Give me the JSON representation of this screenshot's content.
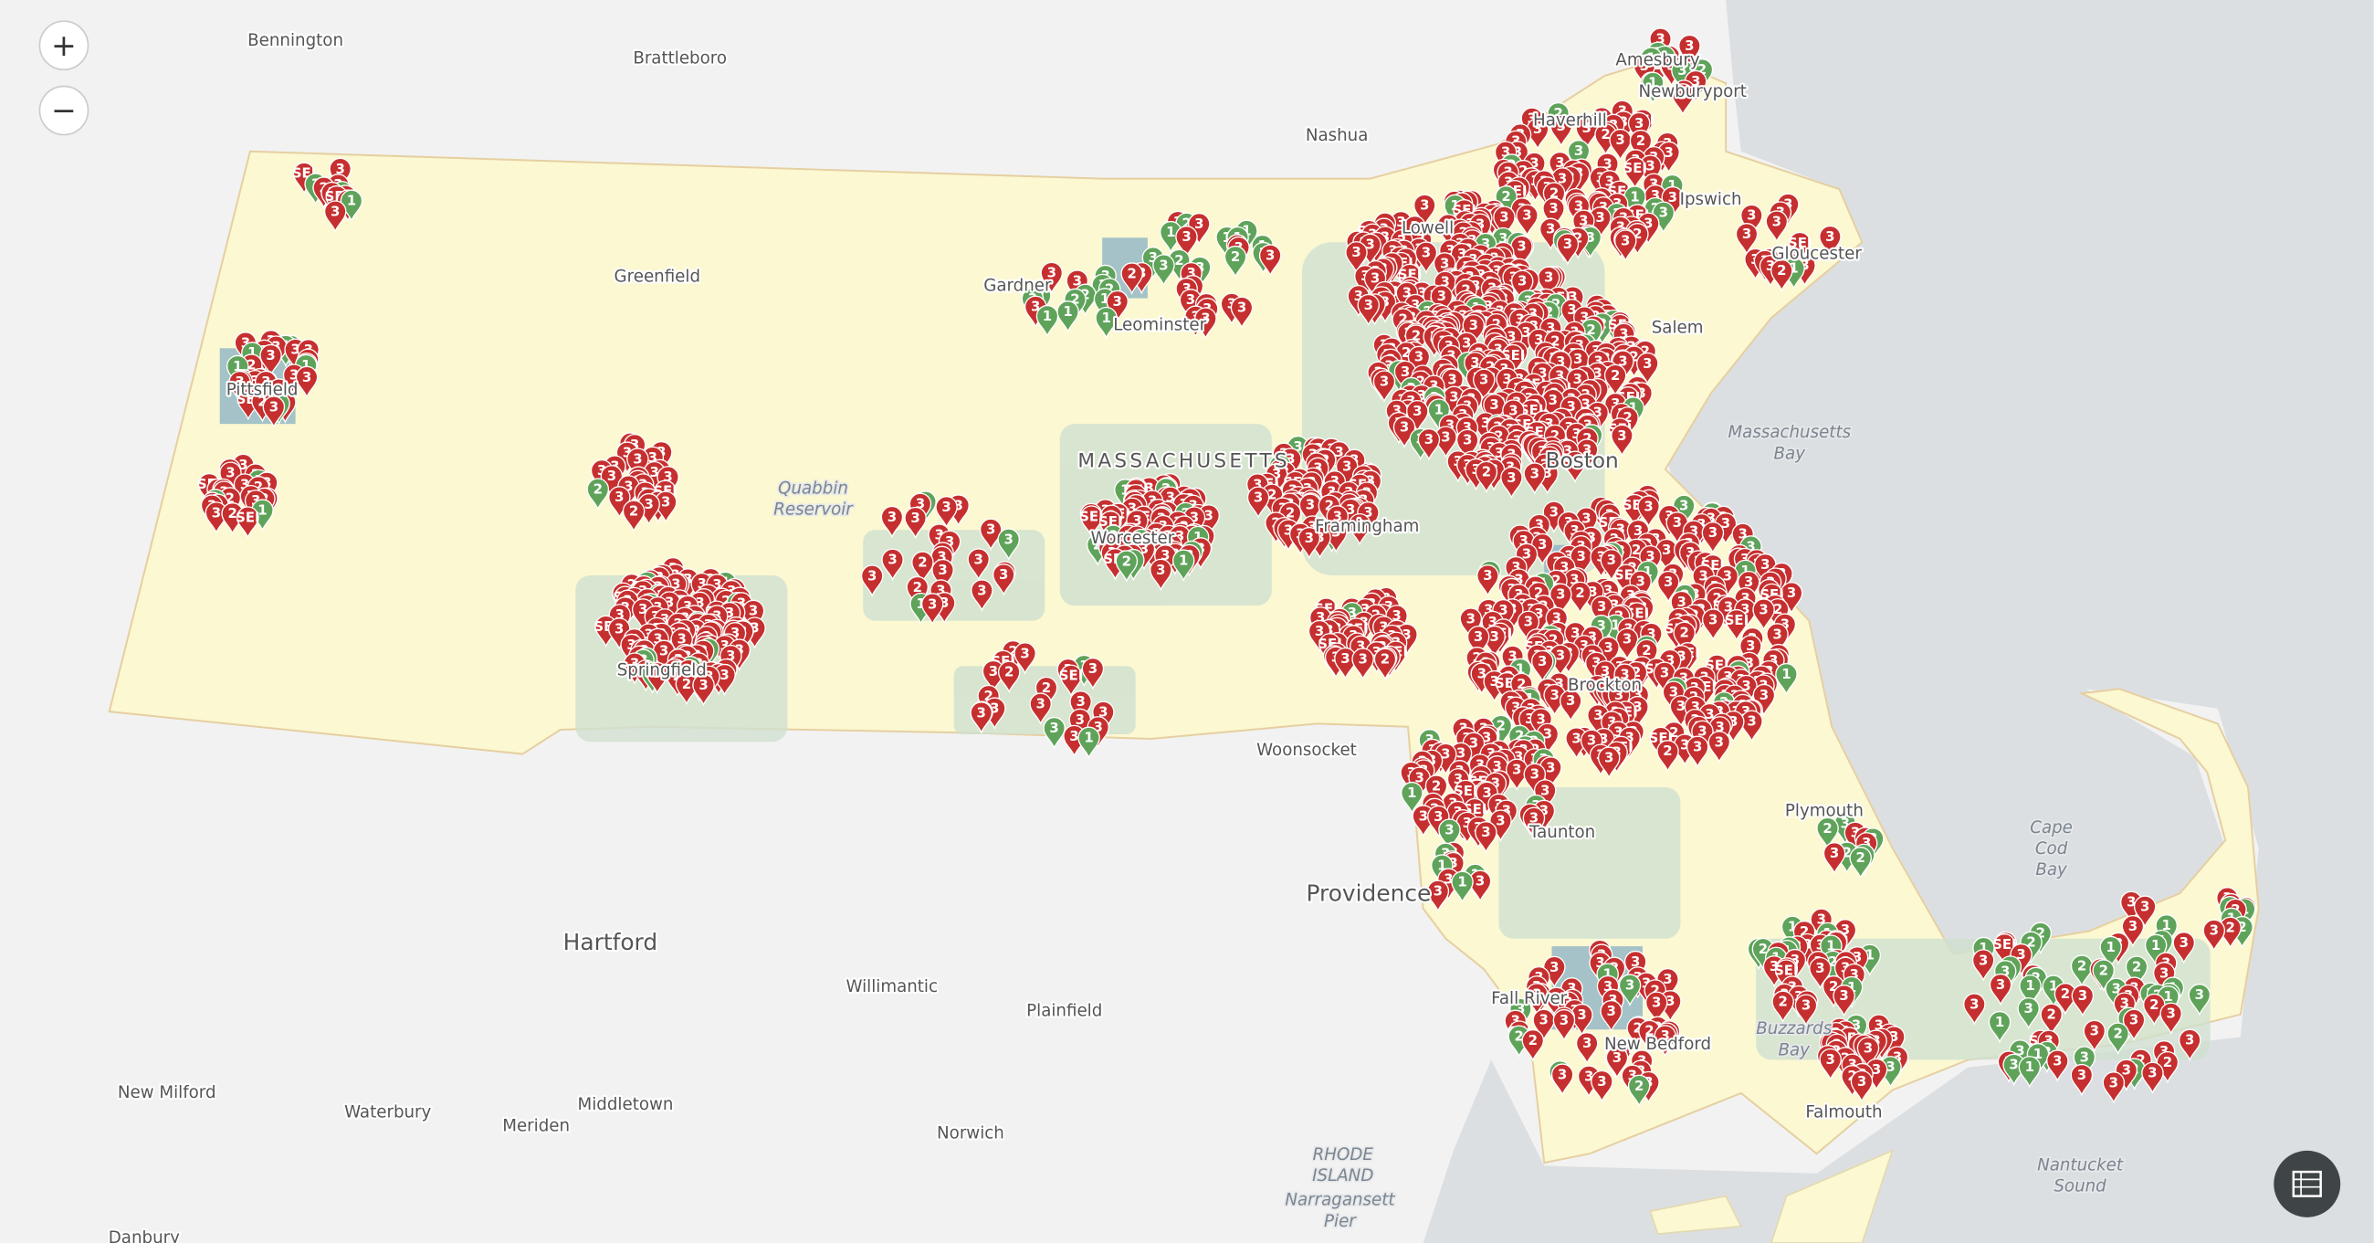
{
  "map": {
    "zoom_in": "+",
    "zoom_out": "−",
    "places": [
      "Bennington",
      "Brattleboro",
      "Nashua",
      "Amesbury",
      "Newburyport",
      "Haverhill",
      "Ipswich",
      "Lowell",
      "Gloucester",
      "Greenfield",
      "Gardner",
      "Leominster",
      "Salem",
      "Pittsfield",
      "Boston",
      "Framingham",
      "Worcester",
      "Springfield",
      "Woonsocket",
      "Brockton",
      "Plymouth",
      "Taunton",
      "Providence",
      "Hartford",
      "Willimantic",
      "Plainfield",
      "New Milford",
      "Waterbury",
      "Middletown",
      "Meriden",
      "Norwich",
      "Fall River",
      "New Bedford",
      "Falmouth",
      "Danbury",
      "MASSACHUSETTS"
    ],
    "multiline_labels": [
      [
        "Massachusetts",
        "Bay"
      ],
      [
        "Quabbin",
        "Reservoir"
      ],
      [
        "Cape",
        "Cod",
        "Bay"
      ],
      [
        "Buzzards",
        "Bay"
      ],
      [
        "Nantucket",
        "Sound"
      ],
      [
        "RHODE",
        "ISLAND"
      ],
      [
        "Narragansett",
        "Pier"
      ]
    ],
    "marker_types": [
      {
        "label": "3",
        "color": "#c62f2f"
      },
      {
        "label": "2",
        "color": "#c62f2f"
      },
      {
        "label": "SEI",
        "color": "#c62f2f"
      },
      {
        "label": "1",
        "color": "#5fa35a"
      },
      {
        "label": "2",
        "color": "#5fa35a"
      },
      {
        "label": "3",
        "color": "#5fa35a"
      }
    ]
  }
}
